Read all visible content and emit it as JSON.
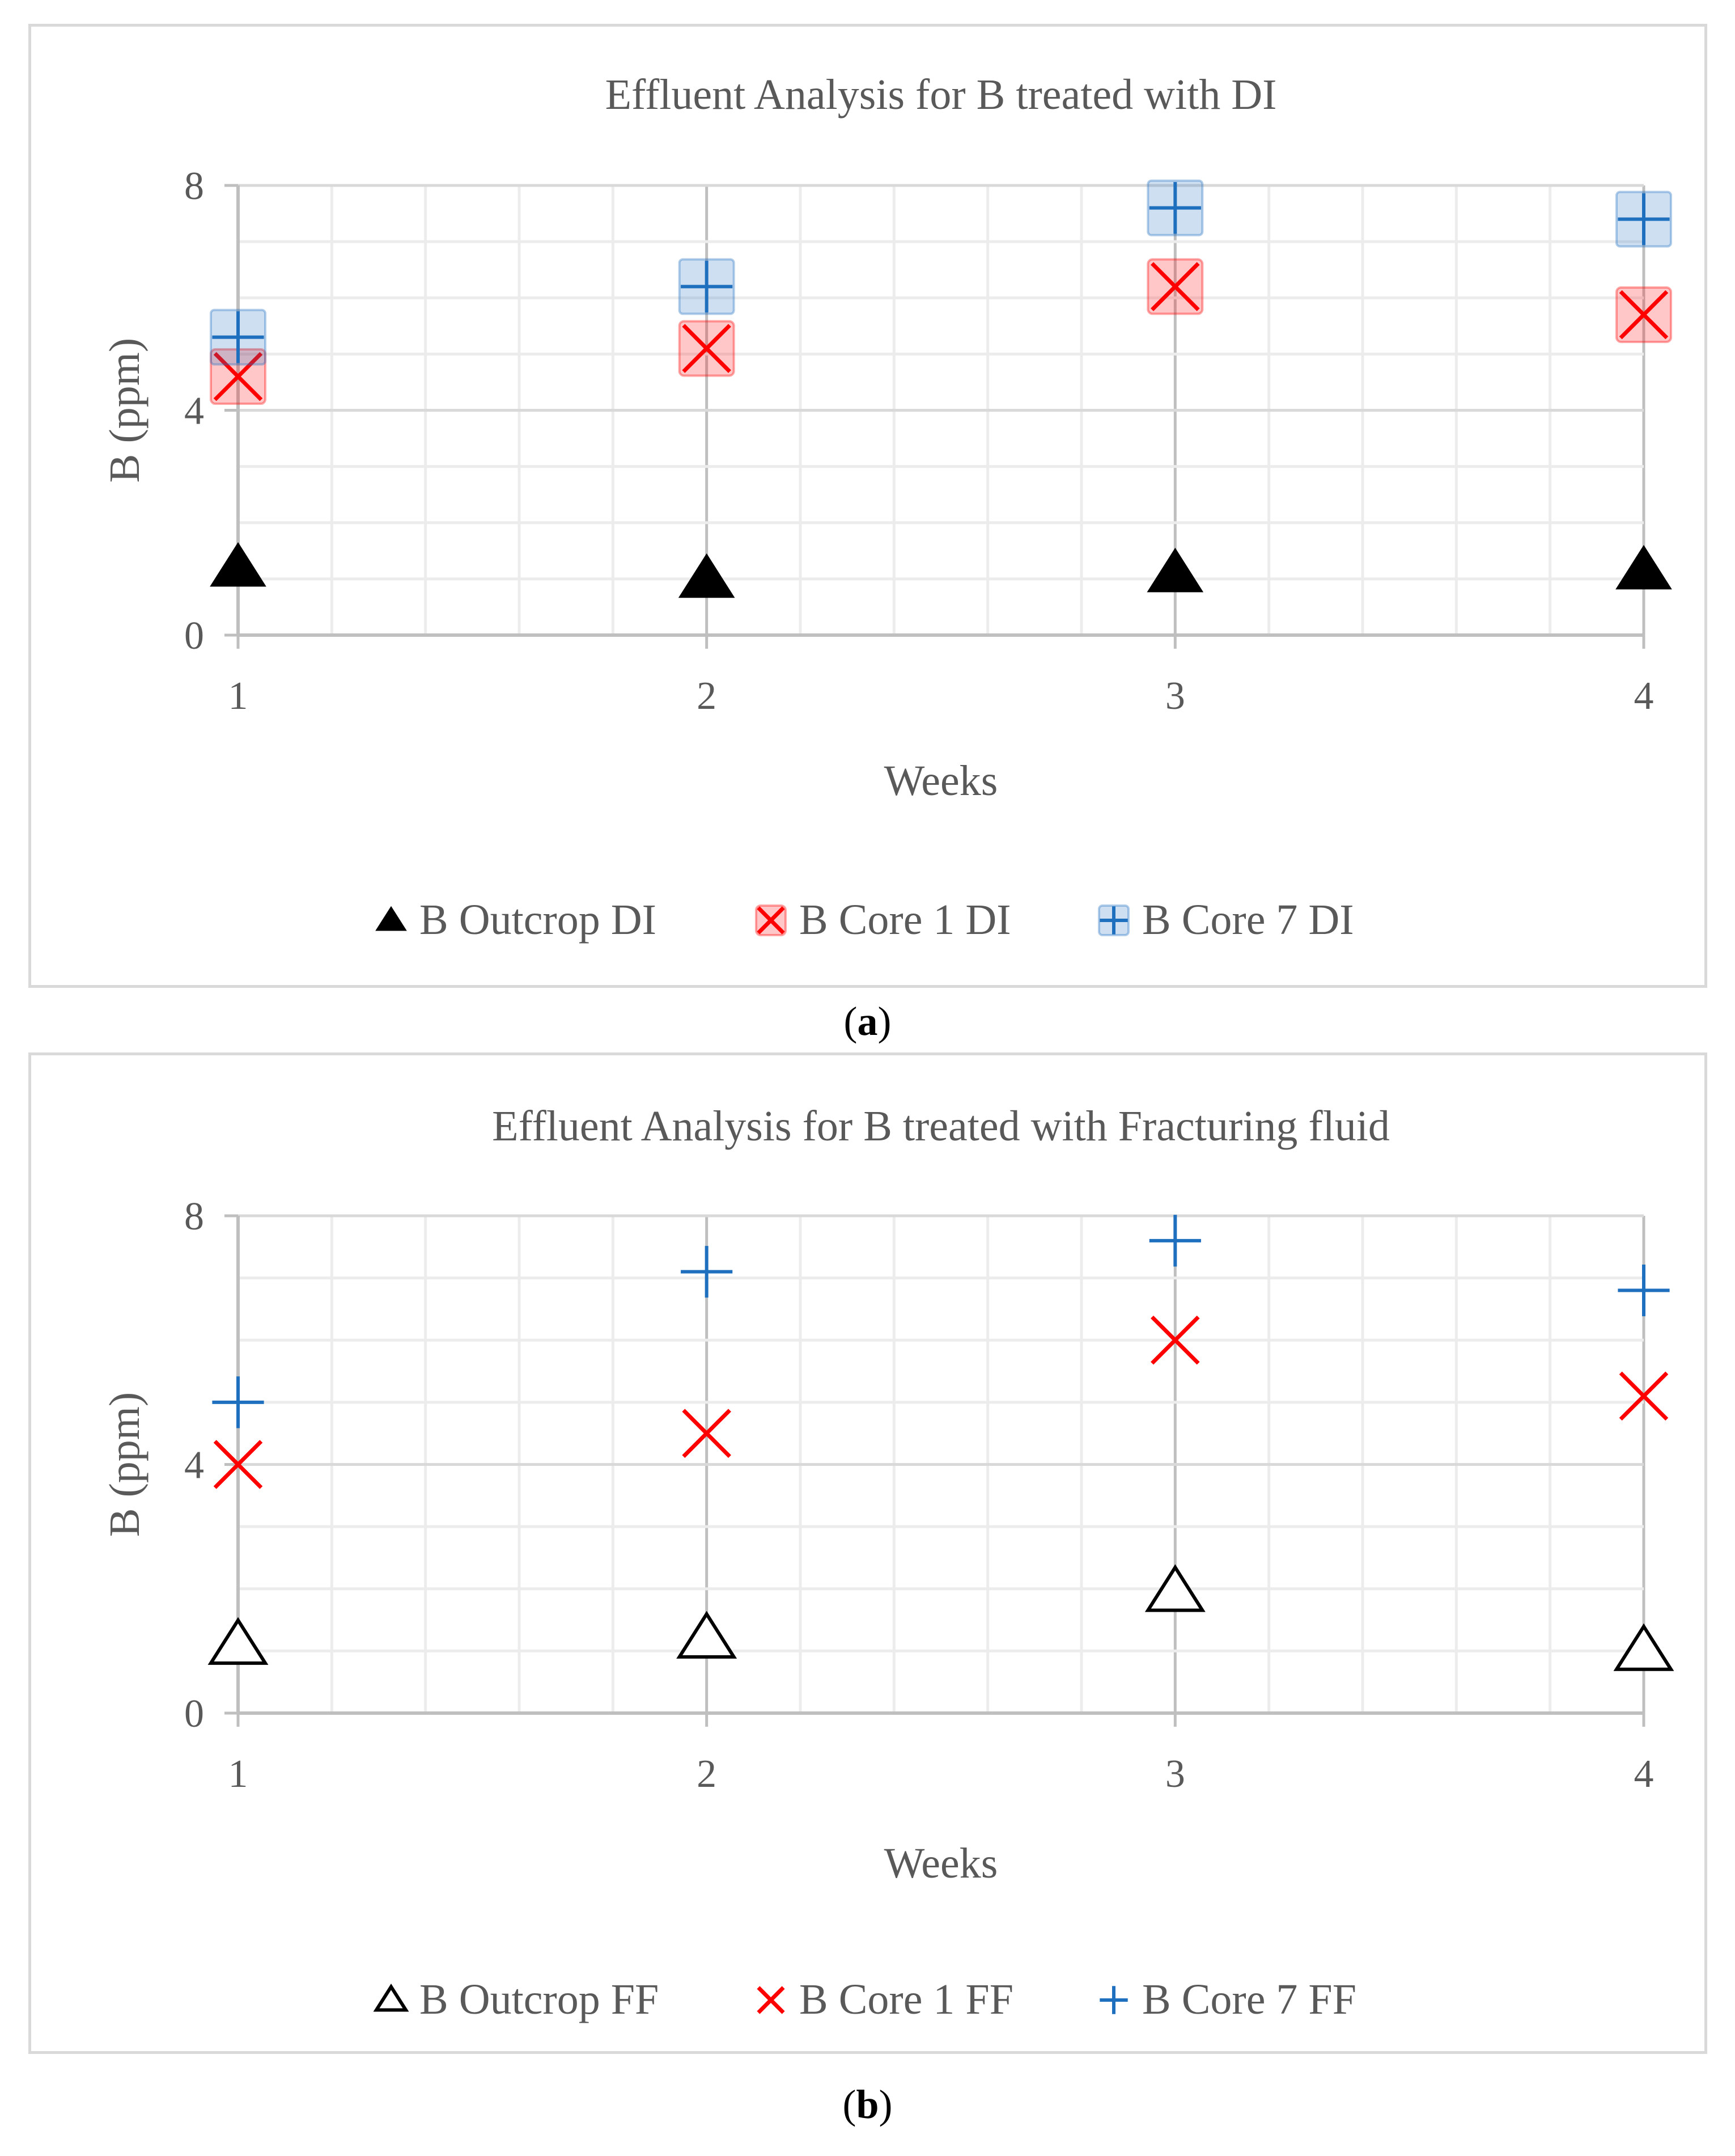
{
  "chart_data": [
    {
      "type": "scatter",
      "title": "Effluent Analysis for B treated with DI",
      "xlabel": "Weeks",
      "ylabel": "B (ppm)",
      "x_ticks": [
        1,
        2,
        3,
        4
      ],
      "y_ticks": [
        0,
        4,
        8
      ],
      "xlim": [
        1,
        4
      ],
      "ylim": [
        0,
        8
      ],
      "grid": true,
      "legend_position": "bottom",
      "series": [
        {
          "name": "B Outcrop DI",
          "marker": "triangle-filled",
          "color": "#000000",
          "x": [
            1,
            2,
            3,
            4
          ],
          "y": [
            1.2,
            1.0,
            1.1,
            1.15
          ]
        },
        {
          "name": "B Core 1 DI",
          "marker": "x-shaded",
          "color": "#ff0000",
          "x": [
            1,
            2,
            3,
            4
          ],
          "y": [
            4.6,
            5.1,
            6.2,
            5.7
          ]
        },
        {
          "name": "B Core 7 DI",
          "marker": "plus-shaded",
          "color": "#1f6fbf",
          "x": [
            1,
            2,
            3,
            4
          ],
          "y": [
            5.3,
            6.2,
            7.6,
            7.4
          ]
        }
      ],
      "caption_letter": "a"
    },
    {
      "type": "scatter",
      "title": "Effluent Analysis for B treated with Fracturing fluid",
      "xlabel": "Weeks",
      "ylabel": "B (ppm)",
      "x_ticks": [
        1,
        2,
        3,
        4
      ],
      "y_ticks": [
        0,
        4,
        8
      ],
      "xlim": [
        1,
        4
      ],
      "ylim": [
        0,
        8
      ],
      "grid": true,
      "legend_position": "bottom",
      "series": [
        {
          "name": "B Outcrop FF",
          "marker": "triangle-open",
          "color": "#000000",
          "x": [
            1,
            2,
            3,
            4
          ],
          "y": [
            1.1,
            1.2,
            1.95,
            1.0
          ]
        },
        {
          "name": "B Core 1 FF",
          "marker": "x",
          "color": "#ff0000",
          "x": [
            1,
            2,
            3,
            4
          ],
          "y": [
            4.0,
            4.5,
            6.0,
            5.1
          ]
        },
        {
          "name": "B Core 7 FF",
          "marker": "plus",
          "color": "#1f6fbf",
          "x": [
            1,
            2,
            3,
            4
          ],
          "y": [
            5.0,
            7.1,
            7.6,
            6.8
          ]
        }
      ],
      "caption_letter": "b"
    }
  ],
  "captions": [
    {
      "open": "(",
      "letter": "a",
      "close": ")"
    },
    {
      "open": "(",
      "letter": "b",
      "close": ")"
    }
  ]
}
